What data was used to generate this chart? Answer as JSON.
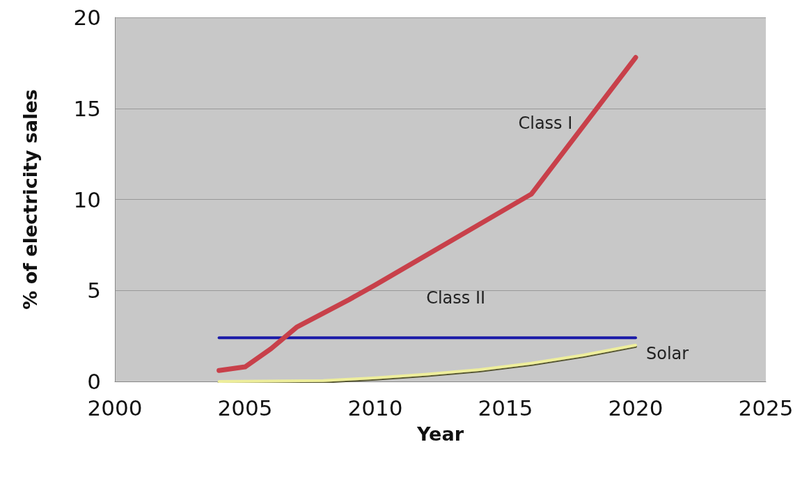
{
  "chart_data": {
    "type": "line",
    "xlabel": "Year",
    "ylabel": "% of electricity sales",
    "xlim": [
      2000,
      2025
    ],
    "xticks": [
      2000,
      2005,
      2010,
      2015,
      2020,
      2025
    ],
    "ylim": [
      0,
      20
    ],
    "yticks": [
      0,
      5,
      10,
      15,
      20
    ],
    "grid": "y",
    "legend": false,
    "marker": "none",
    "series": [
      {
        "name": "Class I",
        "color": "#c8404a",
        "x": [
          2004,
          2005,
          2006,
          2007,
          2009,
          2010,
          2016,
          2020
        ],
        "values": [
          0.6,
          0.8,
          1.8,
          3.0,
          4.5,
          5.3,
          10.3,
          17.8
        ]
      },
      {
        "name": "Class II",
        "color": "#1a1aa8",
        "x": [
          2004,
          2020
        ],
        "values": [
          2.4,
          2.4
        ]
      },
      {
        "name": "Solar",
        "color": "#eeee9c",
        "x": [
          2004,
          2008,
          2010,
          2012,
          2014,
          2016,
          2018,
          2020
        ],
        "values": [
          0,
          0.05,
          0.2,
          0.4,
          0.65,
          1.0,
          1.45,
          2.0
        ]
      }
    ]
  }
}
